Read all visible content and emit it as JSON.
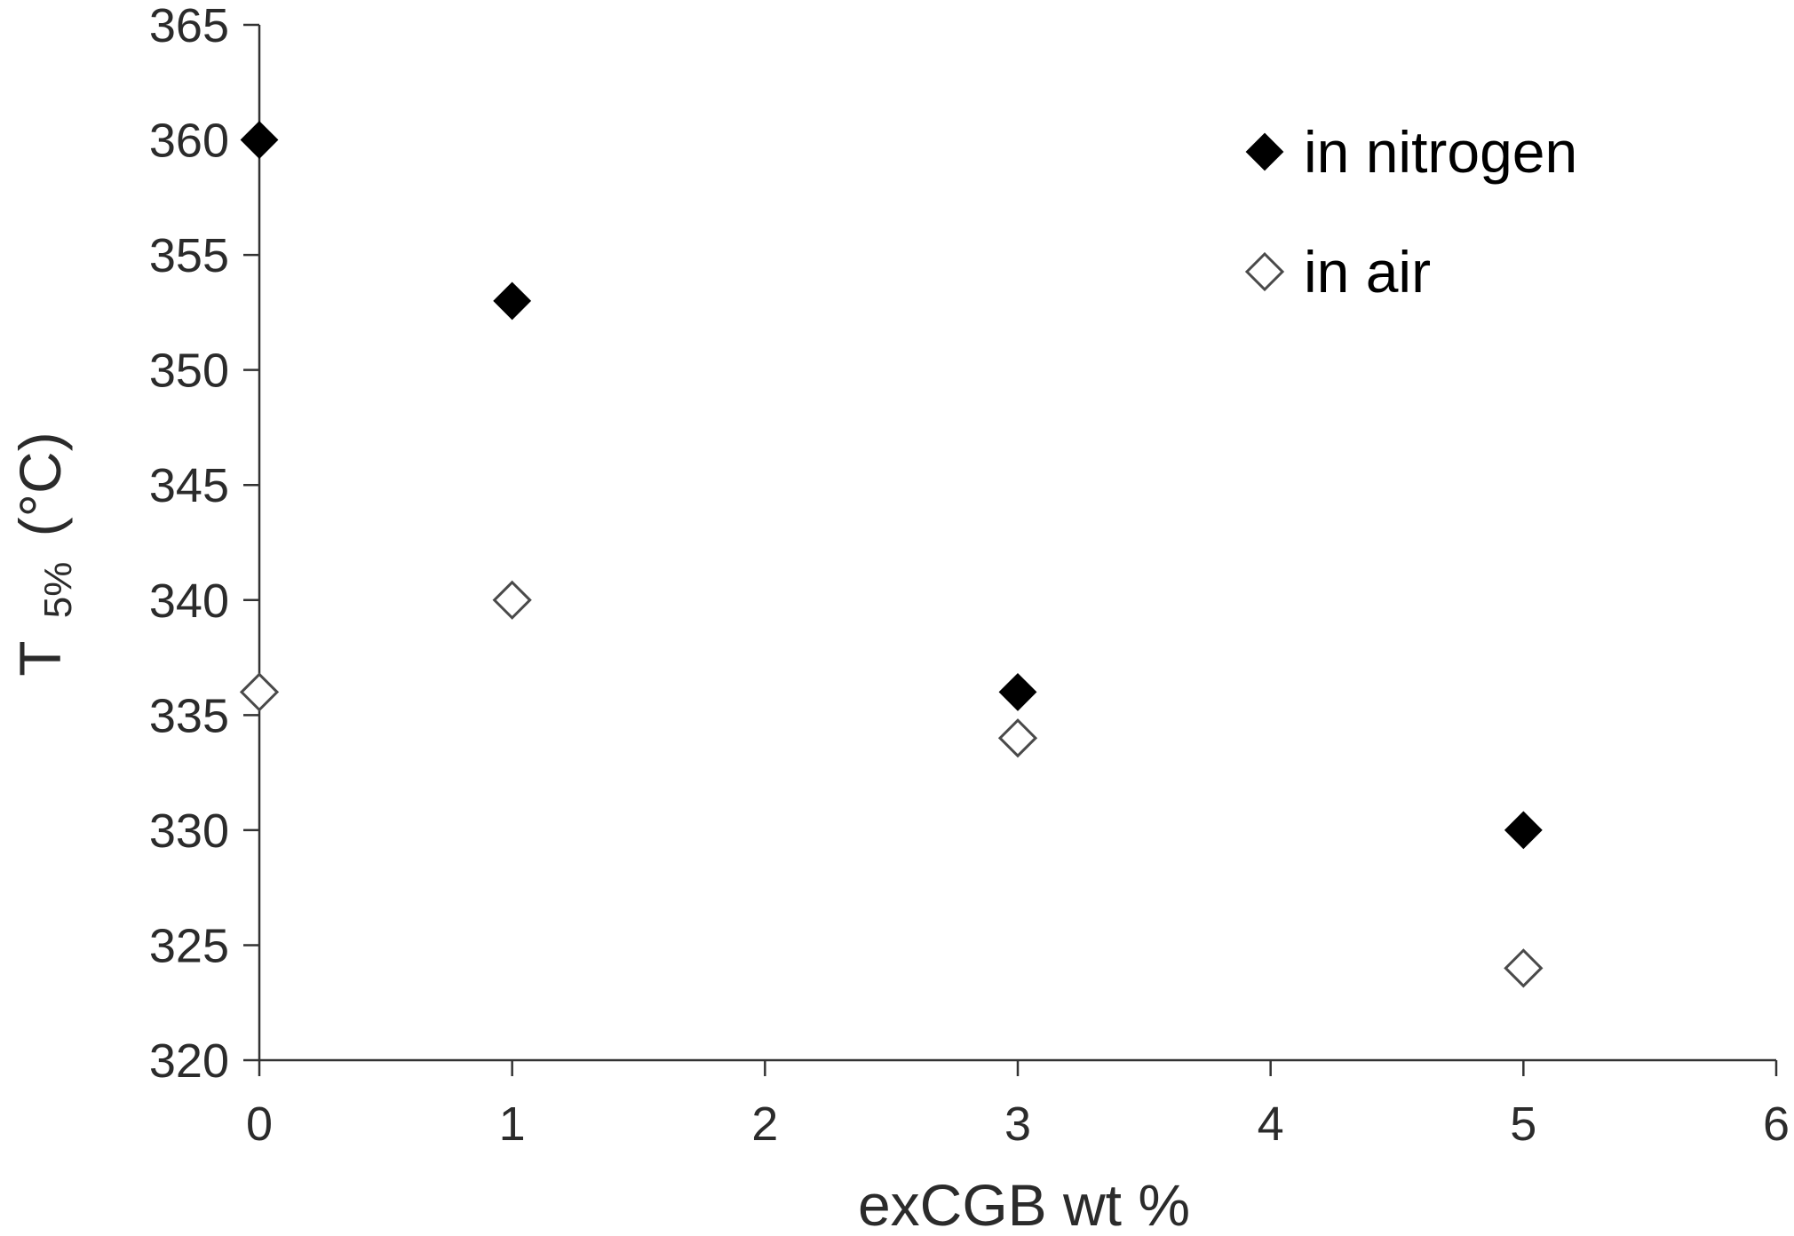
{
  "chart_data": {
    "type": "scatter",
    "title": "",
    "xlabel": "exCGB wt %",
    "ylabel": {
      "main": "T",
      "subscript": "5%",
      "unit": "(°C)"
    },
    "xlim": [
      0,
      6
    ],
    "ylim": [
      320,
      365
    ],
    "x_ticks": [
      0,
      1,
      2,
      3,
      4,
      5,
      6
    ],
    "y_ticks": [
      320,
      325,
      330,
      335,
      340,
      345,
      350,
      355,
      360,
      365
    ],
    "grid": false,
    "legend_position": "top-right",
    "series": [
      {
        "name": "in nitrogen",
        "marker": "diamond-filled",
        "color": "#000000",
        "points": [
          {
            "x": 0,
            "y": 360
          },
          {
            "x": 1,
            "y": 353
          },
          {
            "x": 3,
            "y": 336
          },
          {
            "x": 5,
            "y": 330
          }
        ]
      },
      {
        "name": "in air",
        "marker": "diamond-open",
        "color": "#4a4a4a",
        "points": [
          {
            "x": 0,
            "y": 336
          },
          {
            "x": 1,
            "y": 340
          },
          {
            "x": 3,
            "y": 334
          },
          {
            "x": 5,
            "y": 324
          }
        ]
      }
    ]
  }
}
